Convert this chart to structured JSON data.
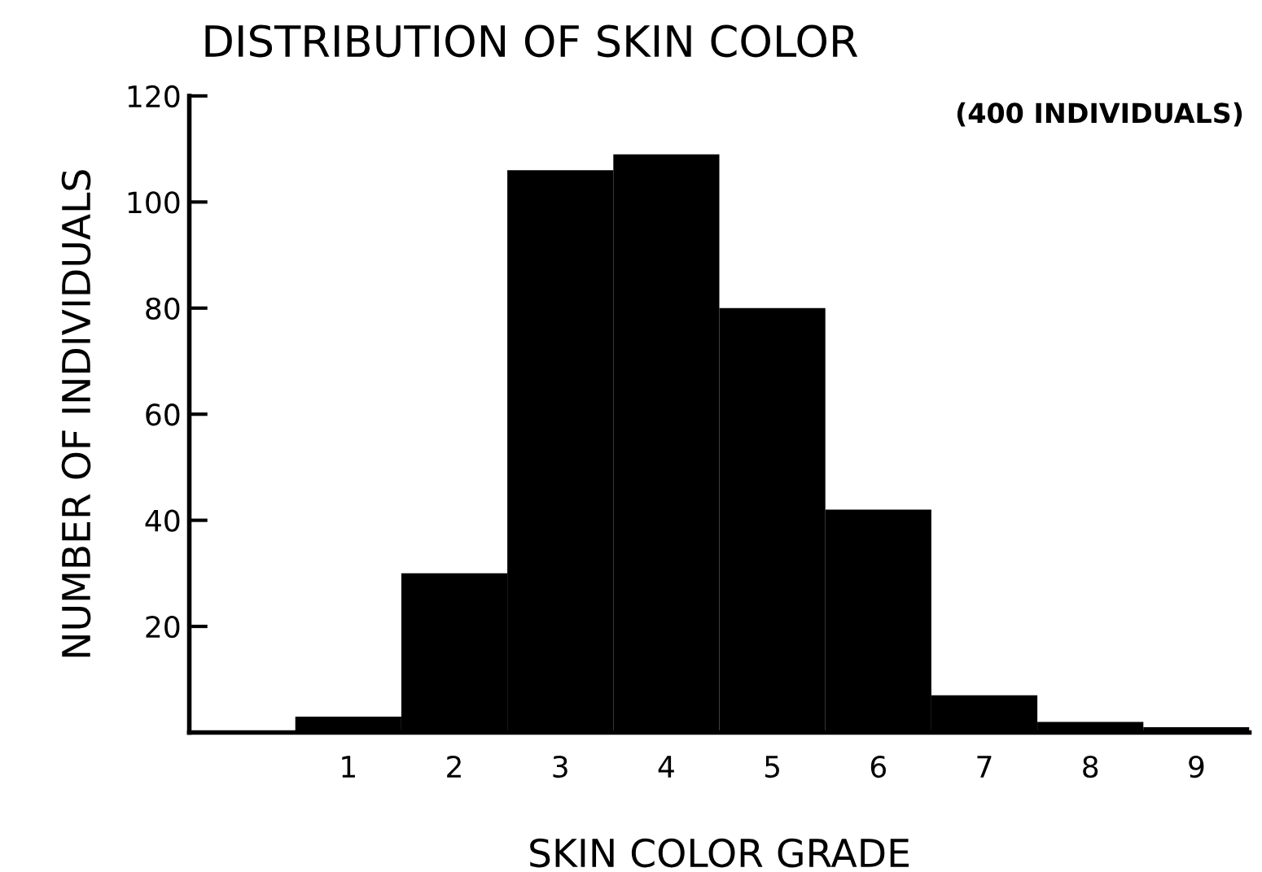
{
  "chart_data": {
    "type": "histogram",
    "title": "DISTRIBUTION OF SKIN COLOR",
    "xlabel": "SKIN COLOR GRADE",
    "ylabel": "NUMBER OF INDIVIDUALS",
    "annotations": [
      "(400 INDIVIDUALS)"
    ],
    "bins": [
      -0.5,
      0.5,
      1.5,
      2.5,
      3.5,
      4.5,
      5.5,
      6.5,
      7.5,
      8.5,
      9.5
    ],
    "values": [
      null,
      3,
      30,
      106,
      109,
      80,
      42,
      7,
      2,
      1
    ],
    "color": "#000000",
    "xlim": [
      -0.5,
      9.5
    ],
    "xticks": [
      1,
      2,
      3,
      4,
      5,
      6,
      7,
      8,
      9
    ],
    "ylim": [
      0,
      120
    ],
    "yticks": [
      20,
      40,
      60,
      80,
      100,
      120
    ],
    "grid": false,
    "legend": false
  }
}
